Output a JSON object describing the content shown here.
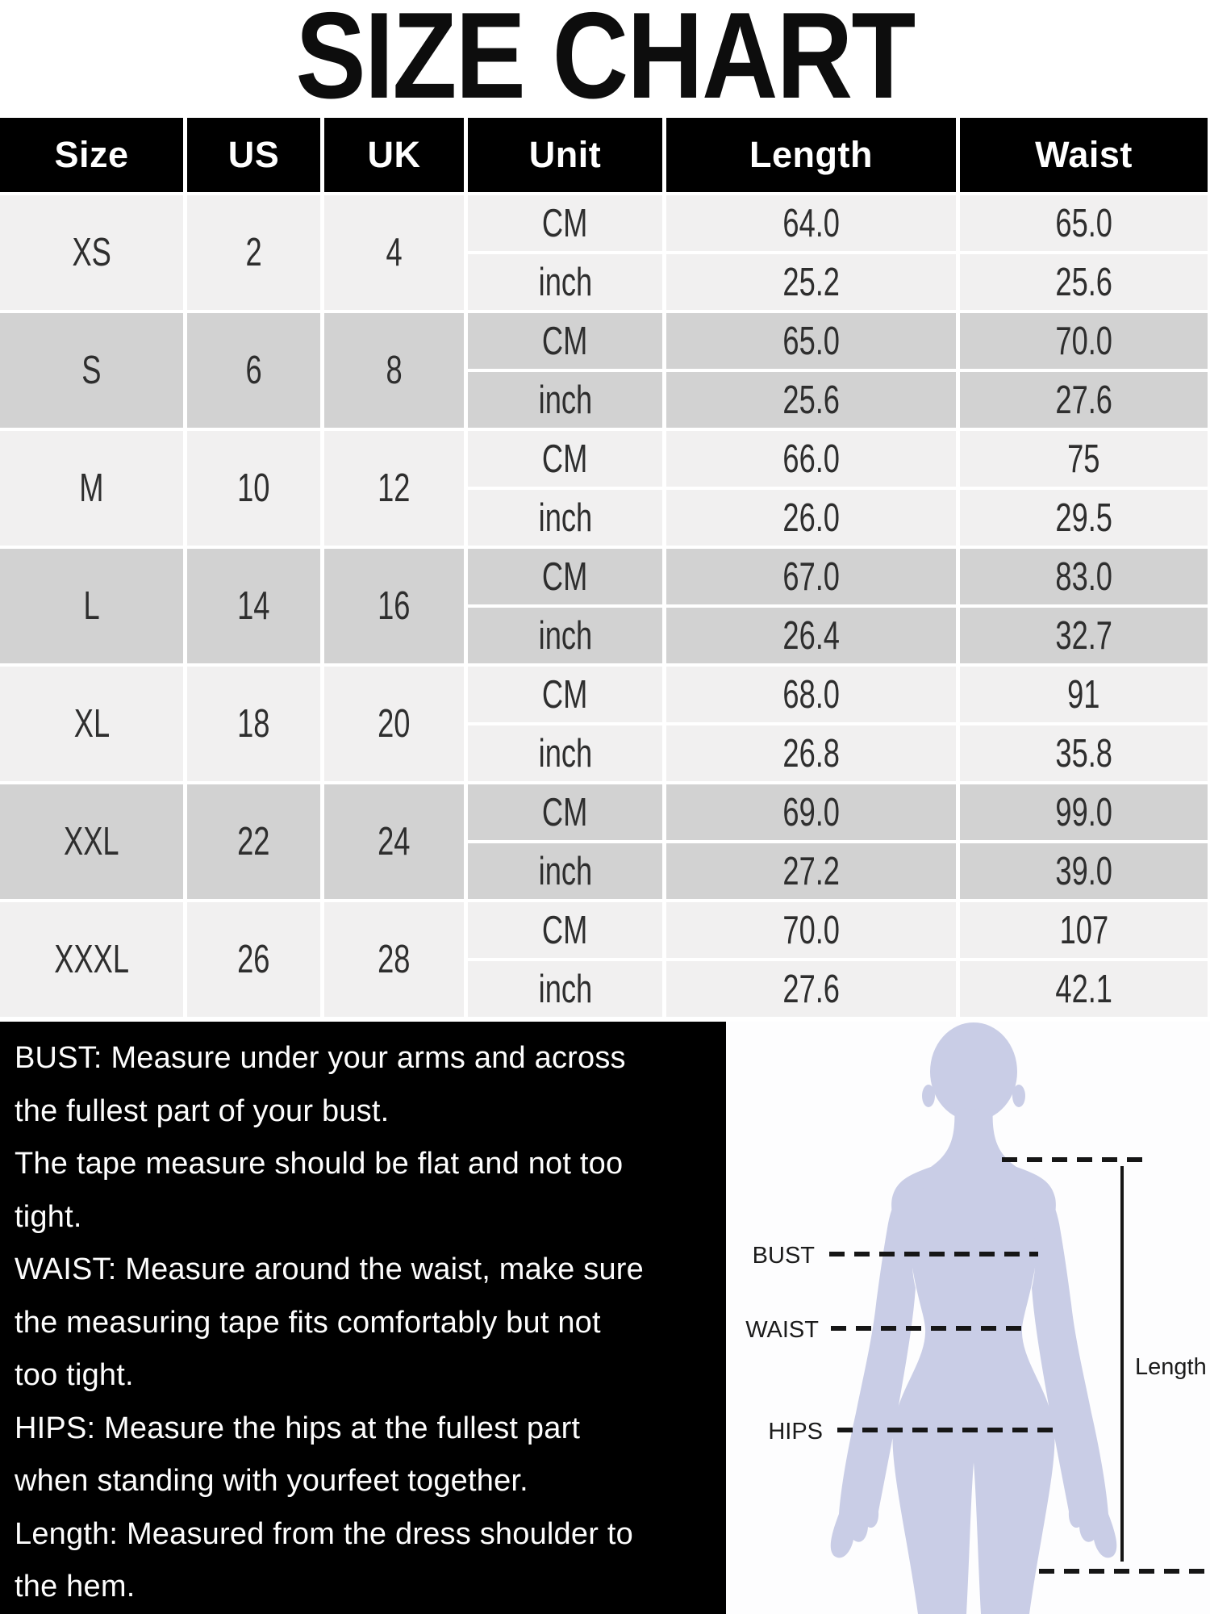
{
  "title": "SIZE CHART",
  "table": {
    "headers": [
      "Size",
      "US",
      "UK",
      "Unit",
      "Length",
      "Waist"
    ],
    "rows": [
      {
        "size": "XS",
        "us": "2",
        "uk": "4",
        "measurements": [
          {
            "unit": "CM",
            "length": "64.0",
            "waist": "65.0"
          },
          {
            "unit": "inch",
            "length": "25.2",
            "waist": "25.6"
          }
        ]
      },
      {
        "size": "S",
        "us": "6",
        "uk": "8",
        "measurements": [
          {
            "unit": "CM",
            "length": "65.0",
            "waist": "70.0"
          },
          {
            "unit": "inch",
            "length": "25.6",
            "waist": "27.6"
          }
        ]
      },
      {
        "size": "M",
        "us": "10",
        "uk": "12",
        "measurements": [
          {
            "unit": "CM",
            "length": "66.0",
            "waist": "75"
          },
          {
            "unit": "inch",
            "length": "26.0",
            "waist": "29.5"
          }
        ]
      },
      {
        "size": "L",
        "us": "14",
        "uk": "16",
        "measurements": [
          {
            "unit": "CM",
            "length": "67.0",
            "waist": "83.0"
          },
          {
            "unit": "inch",
            "length": "26.4",
            "waist": "32.7"
          }
        ]
      },
      {
        "size": "XL",
        "us": "18",
        "uk": "20",
        "measurements": [
          {
            "unit": "CM",
            "length": "68.0",
            "waist": "91"
          },
          {
            "unit": "inch",
            "length": "26.8",
            "waist": "35.8"
          }
        ]
      },
      {
        "size": "XXL",
        "us": "22",
        "uk": "24",
        "measurements": [
          {
            "unit": "CM",
            "length": "69.0",
            "waist": "99.0"
          },
          {
            "unit": "inch",
            "length": "27.2",
            "waist": "39.0"
          }
        ]
      },
      {
        "size": "XXXL",
        "us": "26",
        "uk": "28",
        "measurements": [
          {
            "unit": "CM",
            "length": "70.0",
            "waist": "107"
          },
          {
            "unit": "inch",
            "length": "27.6",
            "waist": "42.1"
          }
        ]
      }
    ]
  },
  "chart_data": {
    "type": "table",
    "columns": [
      "Size",
      "US",
      "UK",
      "Unit",
      "Length",
      "Waist"
    ],
    "rows": [
      [
        "XS",
        "2",
        "4",
        "CM",
        "64.0",
        "65.0"
      ],
      [
        "XS",
        "2",
        "4",
        "inch",
        "25.2",
        "25.6"
      ],
      [
        "S",
        "6",
        "8",
        "CM",
        "65.0",
        "70.0"
      ],
      [
        "S",
        "6",
        "8",
        "inch",
        "25.6",
        "27.6"
      ],
      [
        "M",
        "10",
        "12",
        "CM",
        "66.0",
        "75"
      ],
      [
        "M",
        "10",
        "12",
        "inch",
        "26.0",
        "29.5"
      ],
      [
        "L",
        "14",
        "16",
        "CM",
        "67.0",
        "83.0"
      ],
      [
        "L",
        "14",
        "16",
        "inch",
        "26.4",
        "32.7"
      ],
      [
        "XL",
        "18",
        "20",
        "CM",
        "68.0",
        "91"
      ],
      [
        "XL",
        "18",
        "20",
        "inch",
        "26.8",
        "35.8"
      ],
      [
        "XXL",
        "22",
        "24",
        "CM",
        "69.0",
        "99.0"
      ],
      [
        "XXL",
        "22",
        "24",
        "inch",
        "27.2",
        "39.0"
      ],
      [
        "XXXL",
        "26",
        "28",
        "CM",
        "70.0",
        "107"
      ],
      [
        "XXXL",
        "26",
        "28",
        "inch",
        "27.6",
        "42.1"
      ]
    ],
    "title": "SIZE CHART"
  },
  "notes": {
    "lines": [
      "BUST: Measure under your arms and across",
      "the fullest part of your bust.",
      "The tape measure should be flat and not too",
      "tight.",
      "WAIST: Measure around the waist, make sure",
      "the measuring tape fits comfortably but not",
      "too tight.",
      "HIPS: Measure the hips at the fullest part",
      "when standing with yourfeet together.",
      "Length: Measured from the dress shoulder to",
      "the hem."
    ]
  },
  "figure": {
    "bust_label": "BUST",
    "waist_label": "WAIST",
    "hips_label": "HIPS",
    "length_label": "Length"
  },
  "colors": {
    "header_bg": "#000000",
    "header_text": "#ffffff",
    "row_light": "#f1f0f0",
    "row_dark": "#d2d2d2",
    "cell_text": "#2e2e2e",
    "notes_bg": "#000000",
    "notes_text": "#fdfdfd",
    "silhouette": "#c9cde6",
    "measure_line": "#161616"
  }
}
